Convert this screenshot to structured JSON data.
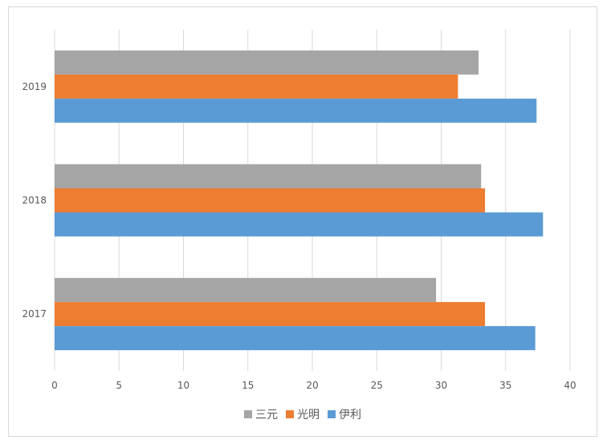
{
  "chart_data": {
    "type": "bar",
    "orientation": "horizontal",
    "categories": [
      "2019",
      "2018",
      "2017"
    ],
    "series": [
      {
        "name": "三元",
        "color": "#a5a5a5",
        "values": [
          32.9,
          33.1,
          29.6
        ]
      },
      {
        "name": "光明",
        "color": "#ed7d31",
        "values": [
          31.3,
          33.4,
          33.4
        ]
      },
      {
        "name": "伊利",
        "color": "#5b9bd5",
        "values": [
          37.4,
          37.9,
          37.3
        ]
      }
    ],
    "x_ticks": [
      "0",
      "5",
      "10",
      "15",
      "20",
      "25",
      "30",
      "35",
      "40"
    ],
    "xlim": [
      0,
      40
    ],
    "grid": true,
    "legend_position": "bottom"
  }
}
